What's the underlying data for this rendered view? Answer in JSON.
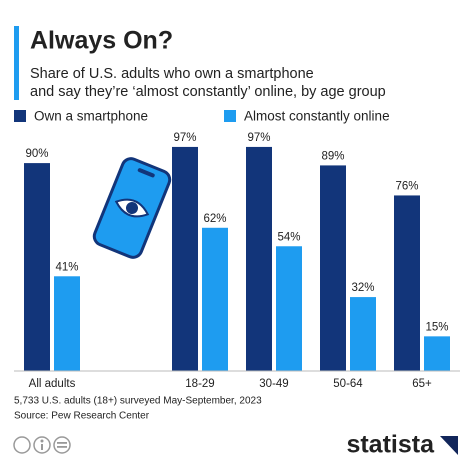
{
  "chart_data": {
    "type": "bar",
    "title": "Always On?",
    "subtitle": [
      "Share of U.S. adults who own a smartphone",
      "and say they’re ‘almost constantly’ online, by age group"
    ],
    "categories": [
      "All adults",
      "18-29",
      "30-49",
      "50-64",
      "65+"
    ],
    "series": [
      {
        "name": "Own a smartphone",
        "color": "#12357a",
        "values": [
          90,
          97,
          97,
          89,
          76
        ],
        "value_labels": [
          "90%",
          "97%",
          "97%",
          "89%",
          "76%"
        ]
      },
      {
        "name": "Almost constantly online",
        "color": "#1e9cf0",
        "values": [
          41,
          62,
          54,
          32,
          15
        ],
        "value_labels": [
          "41%",
          "62%",
          "54%",
          "32%",
          "15%"
        ]
      }
    ],
    "note": "5,733 U.S. adults (18+) surveyed May-September, 2023",
    "source": "Source: Pew Research Center",
    "brand": "statista"
  }
}
